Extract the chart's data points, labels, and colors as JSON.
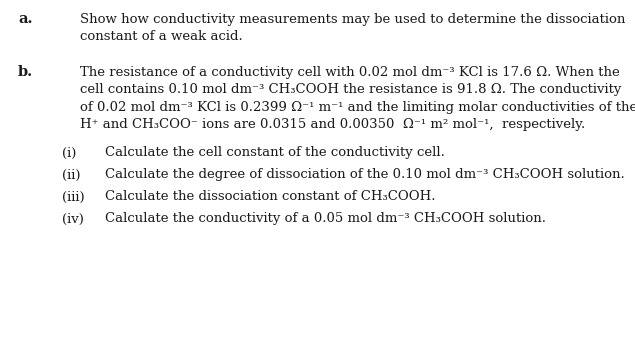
{
  "bg_color": "#ffffff",
  "text_color": "#1a1a1a",
  "font_size": 9.5,
  "label_font_size": 10.5,
  "sup_font_size": 7.0,
  "sub_font_size": 7.0,
  "label_a": "a.",
  "label_b": "b.",
  "line_a1": "Show how conductivity measurements may be used to determine the dissociation",
  "line_a2": "constant of a weak acid.",
  "line_b1": "The resistance of a conductivity cell with 0.02 mol dm",
  "line_b1b": " KCl is 17.6 Ω. When the",
  "line_b2": "cell contains 0.10 mol dm",
  "line_b2b": " CH₃COOH the resistance is 91.8 Ω. The conductivity",
  "line_b3": "of 0.02 mol dm",
  "line_b3b": " KCl is 0.2399 Ω",
  "line_b3c": " m",
  "line_b3d": " and the limiting molar conductivities of the",
  "line_b4": "H",
  "line_b4b": " and CH₃COO",
  "line_b4c": " ions are 0.0315 and 0.00350  Ω",
  "line_b4d": " m",
  "line_b4e": " mol",
  "line_b4f": ",  respectively.",
  "roman_i": "(i)",
  "roman_ii": "(ii)",
  "roman_iii": "(iii)",
  "roman_iv": "(iv)",
  "text_i": "Calculate the cell constant of the conductivity cell.",
  "text_ii": "Calculate the degree of dissociation of the 0.10 mol dm",
  "text_ii_b": " CH₃COOH solution.",
  "text_iii": "Calculate the dissociation constant of CH₃COOH.",
  "text_iv": "Calculate the conductivity of a 0.05 mol dm",
  "text_iv_b": " CH₃COOH solution.",
  "sup_neg3": "⁻³",
  "sup_neg1": "⁻¹",
  "sup_plus": "⁺",
  "sup_minus": "⁻",
  "sup_2": "²"
}
